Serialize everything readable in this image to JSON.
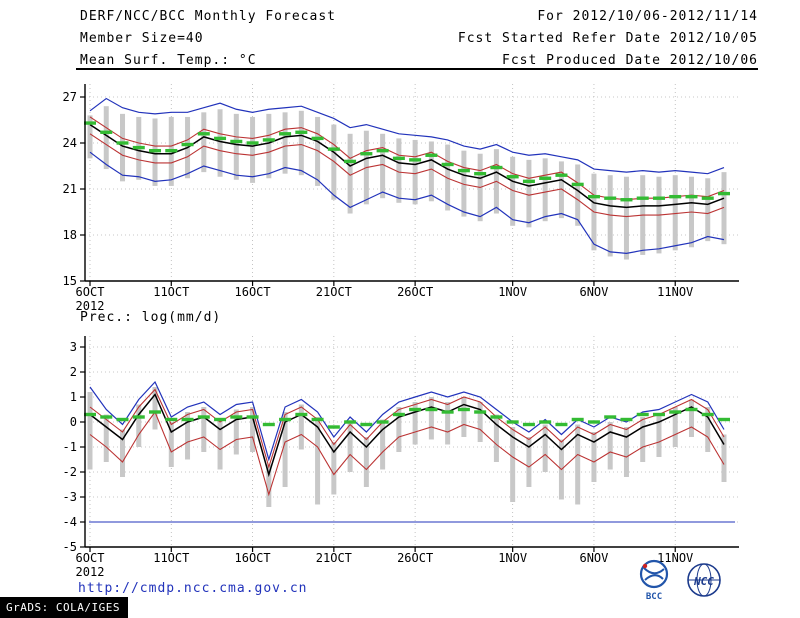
{
  "header": {
    "title": "DERF/NCC/BCC Monthly Forecast",
    "member_size": "Member Size=40",
    "variable": "Mean Surf. Temp.: °C",
    "for_range": "For 2012/10/06-2012/11/14",
    "refer_date": "Fcst Started Refer Date 2012/10/05",
    "produced_date": "Fcst Produced Date 2012/10/06"
  },
  "footer": {
    "url": "http://cmdp.ncc.cma.gov.cn",
    "grads": "GrADS: COLA/IGES",
    "bcc_label": "BCC",
    "ncc_label": "NCC"
  },
  "colors": {
    "line_blue": "#2233bb",
    "line_red": "#bb3333",
    "line_black": "#000000",
    "dash_green": "#33bb33",
    "bar_gray": "#c8c8c8",
    "grid_gray": "#b5b5b5",
    "url_blue": "#2233bb"
  },
  "chart_data": [
    {
      "type": "line",
      "title": "Mean Surf. Temp.: °C",
      "xlabel": "",
      "ylabel": "",
      "ylim": [
        15,
        27
      ],
      "yticks": [
        15,
        18,
        21,
        24,
        27
      ],
      "n_points": 40,
      "x_tick_labels": [
        "6OCT",
        "11OCT",
        "16OCT",
        "21OCT",
        "26OCT",
        "1NOV",
        "6NOV",
        "11NOV"
      ],
      "x_tick_positions": [
        0,
        5,
        10,
        15,
        20,
        26,
        31,
        36
      ],
      "x_year_label": "2012",
      "grid": "dotted",
      "legend": "none",
      "series": [
        {
          "name": "ensemble-max",
          "color": "#2233bb",
          "width": 1.2,
          "values": [
            26.1,
            26.9,
            26.3,
            26.0,
            25.9,
            26.0,
            26.0,
            26.3,
            26.6,
            26.2,
            26.0,
            26.2,
            26.3,
            26.4,
            26.0,
            25.6,
            25.0,
            25.2,
            24.9,
            24.6,
            24.5,
            24.4,
            24.2,
            23.8,
            23.6,
            23.9,
            23.4,
            23.2,
            23.3,
            23.1,
            22.9,
            22.3,
            22.2,
            22.1,
            22.2,
            22.1,
            22.2,
            22.1,
            22.0,
            22.4
          ]
        },
        {
          "name": "quartile-75",
          "color": "#bb3333",
          "width": 1.1,
          "values": [
            25.7,
            25.0,
            24.3,
            24.0,
            23.8,
            23.8,
            24.2,
            24.9,
            24.6,
            24.4,
            24.3,
            24.5,
            24.9,
            25.0,
            24.6,
            23.9,
            23.0,
            23.5,
            23.7,
            23.2,
            23.1,
            23.4,
            22.8,
            22.4,
            22.2,
            22.6,
            22.0,
            21.7,
            21.9,
            22.1,
            21.4,
            20.6,
            20.4,
            20.3,
            20.4,
            20.4,
            20.5,
            20.6,
            20.5,
            20.9
          ]
        },
        {
          "name": "ensemble-mean",
          "color": "#000000",
          "width": 1.5,
          "values": [
            25.2,
            24.5,
            23.8,
            23.5,
            23.3,
            23.3,
            23.7,
            24.4,
            24.1,
            23.9,
            23.8,
            24.0,
            24.4,
            24.5,
            24.1,
            23.4,
            22.5,
            23.0,
            23.2,
            22.7,
            22.6,
            22.9,
            22.3,
            21.9,
            21.7,
            22.1,
            21.5,
            21.2,
            21.4,
            21.6,
            20.9,
            20.1,
            19.9,
            19.8,
            19.9,
            19.9,
            20.0,
            20.1,
            20.0,
            20.4
          ]
        },
        {
          "name": "quartile-25",
          "color": "#bb3333",
          "width": 1.1,
          "values": [
            24.6,
            23.9,
            23.2,
            22.9,
            22.7,
            22.7,
            23.1,
            23.8,
            23.5,
            23.3,
            23.2,
            23.4,
            23.8,
            23.9,
            23.5,
            22.8,
            21.9,
            22.4,
            22.6,
            22.1,
            22.0,
            22.3,
            21.7,
            21.3,
            21.1,
            21.5,
            20.9,
            20.6,
            20.8,
            21.0,
            20.3,
            19.5,
            19.3,
            19.2,
            19.3,
            19.3,
            19.4,
            19.5,
            19.4,
            19.8
          ]
        },
        {
          "name": "ensemble-min",
          "color": "#2233bb",
          "width": 1.2,
          "values": [
            23.4,
            22.6,
            21.9,
            21.8,
            21.5,
            21.6,
            22.0,
            22.5,
            22.2,
            21.9,
            21.8,
            22.0,
            22.4,
            22.2,
            21.6,
            20.6,
            19.8,
            20.3,
            20.8,
            20.4,
            20.3,
            20.6,
            20.0,
            19.5,
            19.2,
            19.8,
            19.0,
            18.8,
            19.2,
            19.4,
            19.0,
            17.4,
            16.9,
            16.8,
            17.0,
            17.1,
            17.3,
            17.5,
            17.9,
            17.7
          ]
        }
      ],
      "dash_series": {
        "name": "climatology",
        "color": "#33bb33",
        "values": [
          25.3,
          24.7,
          24.0,
          23.7,
          23.5,
          23.5,
          23.9,
          24.6,
          24.3,
          24.1,
          24.0,
          24.2,
          24.6,
          24.7,
          24.3,
          23.6,
          22.8,
          23.3,
          23.5,
          23.0,
          22.9,
          23.2,
          22.6,
          22.2,
          22.0,
          22.4,
          21.8,
          21.5,
          21.7,
          21.9,
          21.3,
          20.5,
          20.4,
          20.3,
          20.4,
          20.4,
          20.5,
          20.5,
          20.4,
          20.7
        ]
      },
      "bars": {
        "name": "member-spread",
        "color": "#c8c8c8",
        "low": [
          23.0,
          22.3,
          21.5,
          21.6,
          21.2,
          21.2,
          21.7,
          22.1,
          21.8,
          21.6,
          21.4,
          21.7,
          22.0,
          21.9,
          21.2,
          20.3,
          19.4,
          20.0,
          20.4,
          20.1,
          20.0,
          20.2,
          19.6,
          19.2,
          18.9,
          19.4,
          18.6,
          18.5,
          18.9,
          19.1,
          18.6,
          17.0,
          16.6,
          16.4,
          16.7,
          16.8,
          17.0,
          17.2,
          17.6,
          17.4
        ],
        "high": [
          25.8,
          26.4,
          25.9,
          25.7,
          25.6,
          25.7,
          25.7,
          26.0,
          26.2,
          25.9,
          25.7,
          25.9,
          26.0,
          26.1,
          25.7,
          25.2,
          24.6,
          24.8,
          24.6,
          24.3,
          24.2,
          24.1,
          23.9,
          23.5,
          23.3,
          23.6,
          23.1,
          22.9,
          23.0,
          22.8,
          22.6,
          22.0,
          21.9,
          21.8,
          21.9,
          21.8,
          21.9,
          21.8,
          21.7,
          22.1
        ]
      },
      "hline": null
    },
    {
      "type": "line",
      "title": "Prec.: log(mm/d)",
      "xlabel": "",
      "ylabel": "",
      "ylim": [
        -5,
        3
      ],
      "yticks": [
        -5,
        -4,
        -3,
        -2,
        -1,
        0,
        1,
        2,
        3
      ],
      "n_points": 40,
      "x_tick_labels": [
        "6OCT",
        "11OCT",
        "16OCT",
        "21OCT",
        "26OCT",
        "1NOV",
        "6NOV",
        "11NOV"
      ],
      "x_tick_positions": [
        0,
        5,
        10,
        15,
        20,
        26,
        31,
        36
      ],
      "x_year_label": "2012",
      "grid": "dotted",
      "legend": "none",
      "series": [
        {
          "name": "ensemble-max",
          "color": "#2233bb",
          "width": 1.2,
          "values": [
            1.4,
            0.5,
            -0.1,
            0.9,
            1.6,
            0.2,
            0.6,
            0.8,
            0.3,
            0.7,
            0.8,
            -1.5,
            0.6,
            0.9,
            0.4,
            -0.6,
            0.2,
            -0.4,
            0.3,
            0.8,
            1.0,
            1.2,
            1.0,
            1.2,
            1.0,
            0.5,
            0.0,
            -0.4,
            0.1,
            -0.5,
            0.1,
            -0.2,
            0.2,
            0.0,
            0.4,
            0.5,
            0.8,
            1.1,
            0.8,
            -0.3
          ]
        },
        {
          "name": "quartile-75",
          "color": "#bb3333",
          "width": 1.1,
          "values": [
            0.6,
            0.1,
            -0.4,
            0.6,
            1.3,
            -0.1,
            0.3,
            0.5,
            0.0,
            0.4,
            0.5,
            -1.8,
            0.3,
            0.6,
            0.1,
            -0.9,
            -0.1,
            -0.7,
            0.0,
            0.5,
            0.7,
            0.9,
            0.7,
            1.0,
            0.8,
            0.2,
            -0.3,
            -0.7,
            -0.2,
            -0.8,
            -0.2,
            -0.5,
            -0.1,
            -0.3,
            0.1,
            0.3,
            0.6,
            0.9,
            0.5,
            -0.6
          ]
        },
        {
          "name": "ensemble-mean",
          "color": "#000000",
          "width": 1.5,
          "values": [
            0.3,
            -0.2,
            -0.7,
            0.3,
            1.1,
            -0.4,
            0.0,
            0.2,
            -0.3,
            0.1,
            0.2,
            -2.1,
            0.0,
            0.3,
            -0.2,
            -1.2,
            -0.4,
            -1.0,
            -0.3,
            0.2,
            0.4,
            0.6,
            0.4,
            0.7,
            0.5,
            -0.1,
            -0.6,
            -1.0,
            -0.5,
            -1.1,
            -0.5,
            -0.8,
            -0.4,
            -0.6,
            -0.2,
            0.0,
            0.3,
            0.6,
            0.2,
            -0.9
          ]
        },
        {
          "name": "quartile-25",
          "color": "#bb3333",
          "width": 1.1,
          "values": [
            -0.5,
            -1.0,
            -1.6,
            -0.5,
            0.4,
            -1.2,
            -0.8,
            -0.6,
            -1.1,
            -0.7,
            -0.6,
            -2.9,
            -0.8,
            -0.5,
            -1.0,
            -2.1,
            -1.3,
            -1.9,
            -1.2,
            -0.6,
            -0.4,
            -0.2,
            -0.4,
            -0.1,
            -0.3,
            -0.9,
            -1.4,
            -1.8,
            -1.3,
            -1.9,
            -1.3,
            -1.6,
            -1.2,
            -1.4,
            -1.0,
            -0.8,
            -0.5,
            -0.2,
            -0.6,
            -1.7
          ]
        }
      ],
      "dash_series": {
        "name": "climatology",
        "color": "#33bb33",
        "values": [
          0.3,
          0.2,
          0.1,
          0.2,
          0.4,
          0.1,
          0.1,
          0.2,
          0.1,
          0.2,
          0.2,
          -0.1,
          0.1,
          0.3,
          0.1,
          -0.2,
          0.0,
          -0.1,
          0.0,
          0.3,
          0.5,
          0.5,
          0.4,
          0.5,
          0.4,
          0.2,
          0.0,
          -0.1,
          0.0,
          -0.1,
          0.1,
          0.0,
          0.2,
          0.1,
          0.3,
          0.3,
          0.4,
          0.5,
          0.3,
          0.1
        ]
      },
      "bars": {
        "name": "member-spread",
        "color": "#c8c8c8",
        "low": [
          -1.9,
          -1.6,
          -2.2,
          -1.0,
          -0.3,
          -1.8,
          -1.5,
          -1.2,
          -1.9,
          -1.3,
          -1.2,
          -3.4,
          -2.6,
          -1.1,
          -3.3,
          -2.9,
          -2.0,
          -2.6,
          -1.9,
          -1.2,
          -0.9,
          -0.7,
          -0.9,
          -0.6,
          -0.8,
          -1.6,
          -3.2,
          -2.6,
          -2.0,
          -3.1,
          -3.3,
          -2.4,
          -1.9,
          -2.2,
          -1.6,
          -1.4,
          -1.0,
          -0.6,
          -1.2,
          -2.4
        ],
        "high": [
          1.2,
          0.3,
          -0.3,
          0.7,
          1.4,
          0.0,
          0.4,
          0.6,
          0.1,
          0.5,
          0.6,
          -1.7,
          0.4,
          0.7,
          0.2,
          -0.8,
          0.0,
          -0.6,
          0.1,
          0.6,
          0.8,
          1.0,
          0.8,
          1.0,
          0.8,
          0.3,
          -0.2,
          -0.6,
          -0.1,
          -0.7,
          -0.1,
          -0.4,
          0.0,
          -0.2,
          0.2,
          0.3,
          0.6,
          0.9,
          0.6,
          -0.5
        ]
      },
      "hline": {
        "value": -4,
        "color": "#2233bb"
      }
    }
  ]
}
